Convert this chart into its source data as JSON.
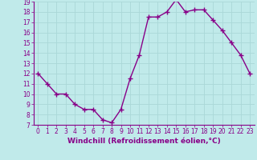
{
  "x": [
    0,
    1,
    2,
    3,
    4,
    5,
    6,
    7,
    8,
    9,
    10,
    11,
    12,
    13,
    14,
    15,
    16,
    17,
    18,
    19,
    20,
    21,
    22,
    23
  ],
  "y": [
    12,
    11,
    10,
    10,
    9,
    8.5,
    8.5,
    7.5,
    7.2,
    8.5,
    11.5,
    13.8,
    17.5,
    17.5,
    18,
    19.2,
    18,
    18.2,
    18.2,
    17.2,
    16.2,
    15,
    13.8,
    12
  ],
  "line_color": "#880088",
  "marker": "+",
  "marker_size": 4,
  "bg_color": "#c0eaea",
  "grid_color": "#aad8d8",
  "xlabel": "Windchill (Refroidissement éolien,°C)",
  "ylim": [
    7,
    19
  ],
  "xlim": [
    -0.5,
    23.5
  ],
  "yticks": [
    7,
    8,
    9,
    10,
    11,
    12,
    13,
    14,
    15,
    16,
    17,
    18,
    19
  ],
  "xticks": [
    0,
    1,
    2,
    3,
    4,
    5,
    6,
    7,
    8,
    9,
    10,
    11,
    12,
    13,
    14,
    15,
    16,
    17,
    18,
    19,
    20,
    21,
    22,
    23
  ],
  "xlabel_fontsize": 6.5,
  "tick_fontsize": 5.5,
  "line_width": 1.0,
  "marker_edge_width": 1.0
}
